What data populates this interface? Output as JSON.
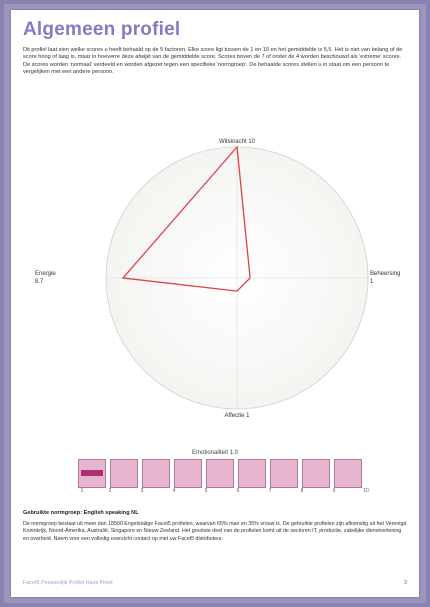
{
  "page": {
    "title": "Algemeen profiel",
    "intro": "Dit profiel laat zien welke scores u heeft behaald op de 5 factoren. Elke score ligt tussen de 1 en 10 en het gemiddelde is 5,5. Het is niet van belang of de score hoog of laag is, maar in hoeverre deze afwijkt van de gemiddelde score. Scores boven de 7 of onder de 4 worden beschouwd als 'extreme' scores. De scores worden 'normaal' verdeeld en worden afgezet tegen een specifieke 'normgroep'. De behaalde scores stellen u in staat om een persoon te vergelijken met een andere persoon.",
    "norm_heading": "Gebruikte normgroep: English speaking NL",
    "norm_text": "De normgroep bestaat uit meer dan 18500 Engelstalige Facet5 profielen, waarvan 65% man en 35% vrouw is. De gebruikte profielen zijn afkomstig uit het Verenigd Koninkrijk, Noord-Amerika, Australië, Singapore en Nieuw Zeeland. Het grootste deel van de profielen komt uit de sectoren IT, productie, zakelijke dienstverlening en overheid. Neem voor een volledig overzicht contact op met uw Facet5 distributeur.",
    "footer_left": "Facet5 Persoonlijk Profiel Hans Proef",
    "footer_right": "3"
  },
  "colors": {
    "title": "#8b78c4",
    "profile_line": "#e0404e",
    "scale_fill": "#b02f71",
    "scale_box": "#e6b6cf"
  },
  "chart_data": [
    {
      "type": "radar",
      "range": [
        0,
        10
      ],
      "axes": [
        "Wilskracht",
        "Beheersing",
        "Affectie",
        "Energie"
      ],
      "values": [
        10,
        1,
        1,
        8.7
      ],
      "labels": {
        "wilskracht": "Wilskracht 10",
        "beheersing": "Beheersing",
        "beheersing_value": "1",
        "affectie": "Affectie 1",
        "energie": "Energie",
        "energie_value": "8.7"
      }
    },
    {
      "type": "scale",
      "title": "Emotionaliteit 1.0",
      "value": 1.0,
      "range": [
        1,
        10
      ],
      "ticks": [
        "1",
        "2",
        "3",
        "4",
        "5",
        "6",
        "7",
        "8",
        "9",
        "10"
      ]
    }
  ]
}
